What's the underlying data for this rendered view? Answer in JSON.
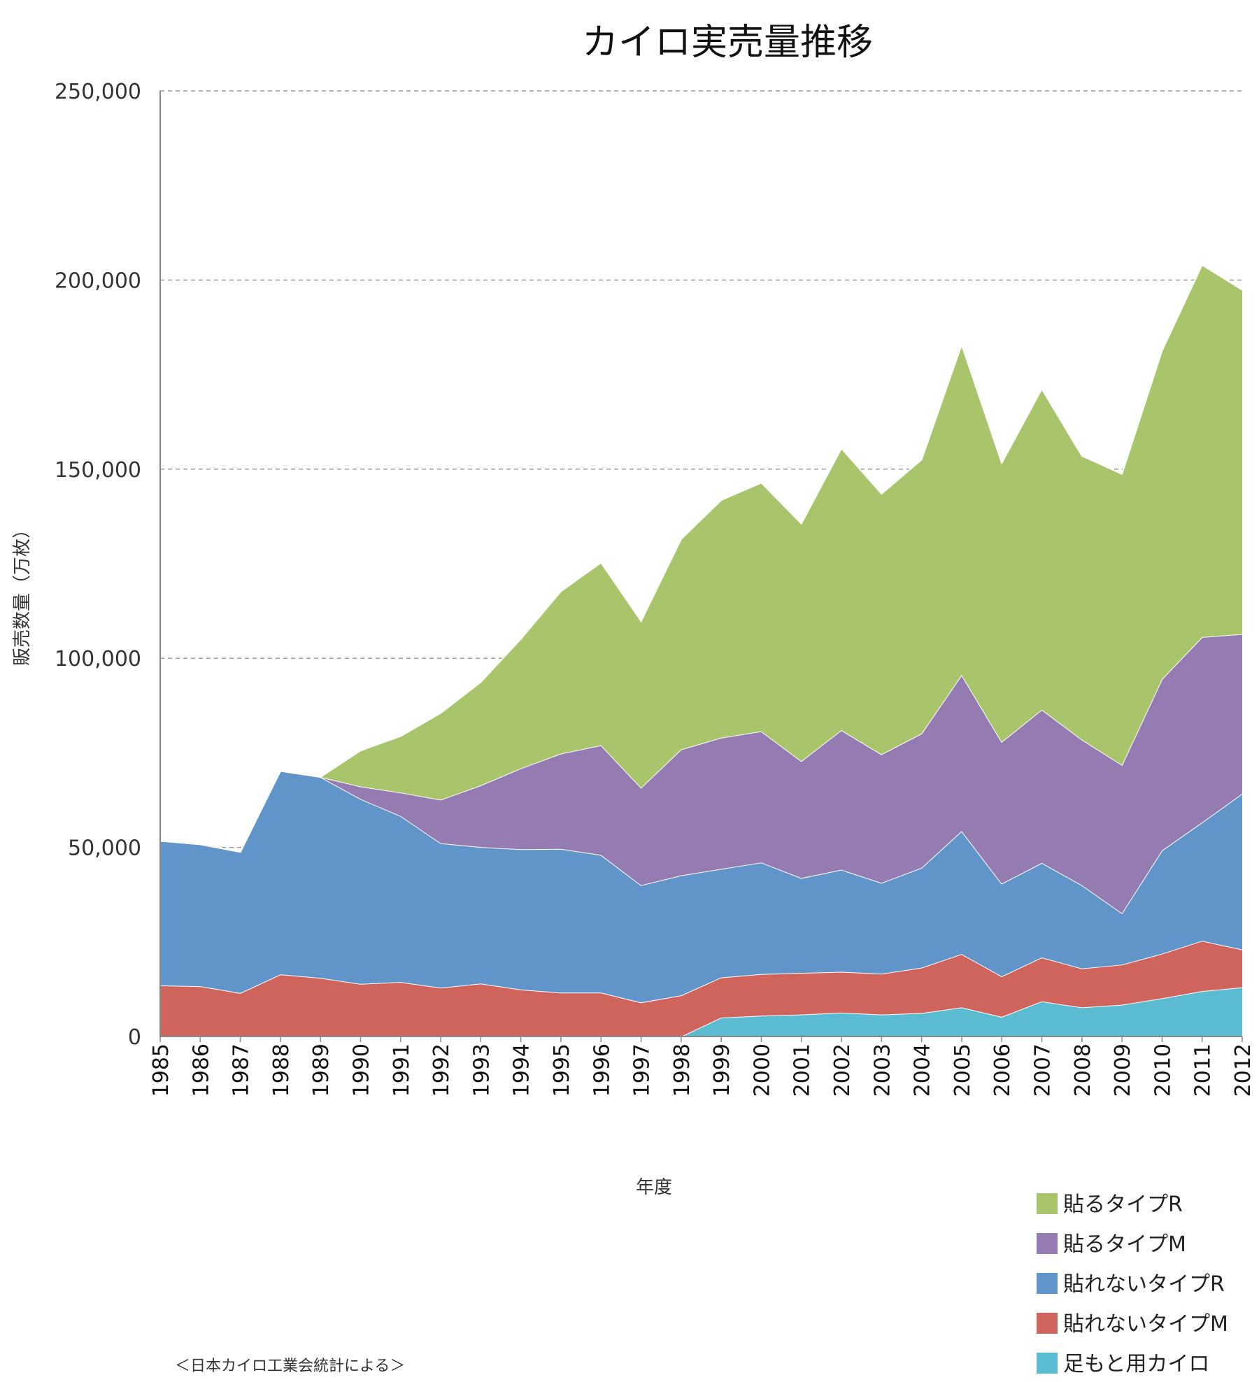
{
  "chart_data": {
    "type": "area",
    "stacked": true,
    "title": "カイロ実売量推移",
    "xlabel": "年度",
    "ylabel": "販売数量（万枚）",
    "ylim": [
      0,
      250000
    ],
    "yticks": [
      0,
      50000,
      100000,
      150000,
      200000,
      250000
    ],
    "ytick_labels": [
      "0",
      "50,000",
      "100,000",
      "150,000",
      "200,000",
      "250,000"
    ],
    "grid": "horizontal dashed",
    "legend_position": "bottom-right",
    "source_note": "＜日本カイロ工業会統計による＞",
    "x": [
      1985,
      1986,
      1987,
      1988,
      1989,
      1990,
      1991,
      1992,
      1993,
      1994,
      1995,
      1996,
      1997,
      1998,
      1999,
      2000,
      2001,
      2002,
      2003,
      2004,
      2005,
      2006,
      2007,
      2008,
      2009,
      2010,
      2011,
      2012
    ],
    "series": [
      {
        "name": "足もと用カイロ",
        "color": "#5bbbd0",
        "values": [
          0,
          0,
          0,
          0,
          0,
          0,
          0,
          0,
          0,
          0,
          0,
          0,
          0,
          0,
          5000,
          5500,
          5800,
          6300,
          5800,
          6200,
          7700,
          5200,
          9300,
          7700,
          8400,
          10100,
          12000,
          13000
        ]
      },
      {
        "name": "貼れないタイプM",
        "color": "#cf645d",
        "values": [
          13500,
          13300,
          11500,
          16400,
          15500,
          13900,
          14400,
          12900,
          14000,
          12400,
          11600,
          11600,
          9000,
          10900,
          10600,
          11000,
          11000,
          10800,
          10800,
          12000,
          14100,
          10700,
          11600,
          10300,
          10600,
          11800,
          13300,
          10000
        ]
      },
      {
        "name": "貼れないタイプR",
        "color": "#6195c9",
        "values": [
          38200,
          37500,
          37300,
          53800,
          53100,
          48900,
          43900,
          38200,
          36100,
          37100,
          38000,
          36400,
          31000,
          31700,
          28700,
          29500,
          25100,
          27000,
          24000,
          26400,
          32500,
          24500,
          25000,
          22000,
          13600,
          27300,
          31300,
          41200
        ]
      },
      {
        "name": "貼るタイプM",
        "color": "#947cb2",
        "values": [
          0,
          0,
          0,
          0,
          0,
          3300,
          6200,
          11500,
          16300,
          21400,
          25200,
          29000,
          25800,
          33300,
          34700,
          34700,
          30900,
          36900,
          34000,
          35500,
          41300,
          37500,
          40500,
          38500,
          39200,
          45300,
          49000,
          42200
        ]
      },
      {
        "name": "貼るタイプR",
        "color": "#a9c56c",
        "values": [
          0,
          0,
          0,
          0,
          0,
          9500,
          14900,
          22900,
          27300,
          34200,
          42900,
          48300,
          44000,
          55600,
          62800,
          65700,
          62800,
          74500,
          68900,
          72400,
          87300,
          73700,
          84800,
          75000,
          76900,
          86800,
          98400,
          91000
        ]
      }
    ],
    "legend_order": [
      "貼るタイプR",
      "貼るタイプM",
      "貼れないタイプR",
      "貼れないタイプM",
      "足もと用カイロ"
    ]
  }
}
